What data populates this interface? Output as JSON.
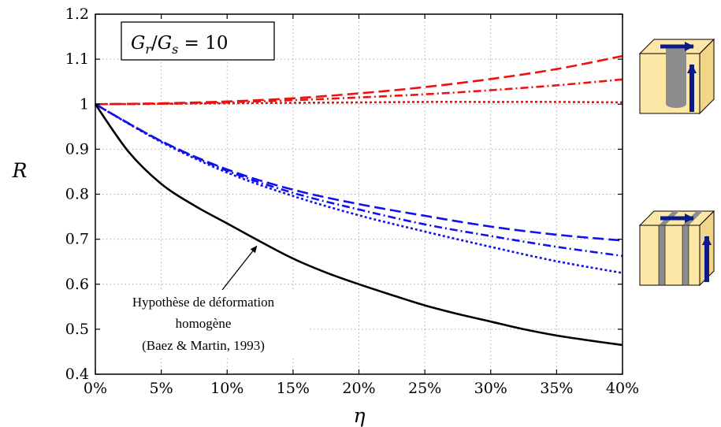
{
  "chart_data": {
    "type": "line",
    "xlabel": "η",
    "ylabel": "R",
    "xlim": [
      0,
      40
    ],
    "ylim": [
      0.4,
      1.2
    ],
    "grid": true,
    "x_tick_labels": [
      "0%",
      "5%",
      "10%",
      "15%",
      "20%",
      "25%",
      "30%",
      "35%",
      "40%"
    ],
    "y_tick_labels": [
      "0.4",
      "0.5",
      "0.6",
      "0.7",
      "0.8",
      "0.9",
      "1",
      "1.1",
      "1.2"
    ],
    "x_ticks": [
      0,
      5,
      10,
      15,
      20,
      25,
      30,
      35,
      40
    ],
    "y_ticks": [
      0.4,
      0.5,
      0.6,
      0.7,
      0.8,
      0.9,
      1.0,
      1.1,
      1.2
    ],
    "equation_box": {
      "parts": [
        {
          "text": "G",
          "italic": true
        },
        {
          "text": "r",
          "italic": true,
          "sub": true
        },
        {
          "text": "/",
          "italic": false
        },
        {
          "text": "G",
          "italic": true
        },
        {
          "text": "s",
          "italic": true,
          "sub": true
        },
        {
          "text": " = 10",
          "italic": false
        }
      ]
    },
    "annotation": {
      "lines": [
        "Hypothèse de déformation",
        "homogène",
        "(Baez & Martin, 1993)"
      ],
      "points_to": [
        12.0,
        0.695
      ]
    },
    "series": [
      {
        "color": "#ee1111",
        "dash": "long-dash",
        "x": [
          0,
          5,
          10,
          15,
          20,
          25,
          30,
          35,
          40
        ],
        "y": [
          1.0,
          1.002,
          1.006,
          1.013,
          1.024,
          1.038,
          1.056,
          1.078,
          1.107
        ]
      },
      {
        "color": "#ee1111",
        "dash": "dash-dot",
        "x": [
          0,
          5,
          10,
          15,
          20,
          25,
          30,
          35,
          40
        ],
        "y": [
          1.0,
          1.001,
          1.004,
          1.009,
          1.015,
          1.022,
          1.031,
          1.042,
          1.055
        ]
      },
      {
        "color": "#ee1111",
        "dash": "dotted",
        "x": [
          0,
          5,
          10,
          15,
          20,
          25,
          30,
          35,
          40
        ],
        "y": [
          1.0,
          1.001,
          1.002,
          1.003,
          1.004,
          1.005,
          1.005,
          1.005,
          1.004
        ]
      },
      {
        "color": "#1111ee",
        "dash": "long-dash",
        "x": [
          0,
          5,
          10,
          15,
          20,
          25,
          30,
          35,
          40
        ],
        "y": [
          1.0,
          0.918,
          0.855,
          0.81,
          0.778,
          0.752,
          0.728,
          0.71,
          0.697
        ]
      },
      {
        "color": "#1111ee",
        "dash": "dash-dot",
        "x": [
          0,
          5,
          10,
          15,
          20,
          25,
          30,
          35,
          40
        ],
        "y": [
          1.0,
          0.918,
          0.852,
          0.803,
          0.766,
          0.733,
          0.707,
          0.683,
          0.663
        ]
      },
      {
        "color": "#1111ee",
        "dash": "dotted",
        "x": [
          0,
          5,
          10,
          15,
          20,
          25,
          30,
          35,
          40
        ],
        "y": [
          1.0,
          0.916,
          0.848,
          0.796,
          0.753,
          0.717,
          0.683,
          0.651,
          0.625
        ]
      },
      {
        "color": "#000000",
        "dash": "solid",
        "x": [
          0,
          2.5,
          5,
          7.5,
          10,
          12.5,
          15,
          17.5,
          20,
          22.5,
          25,
          27.5,
          30,
          32.5,
          35,
          37.5,
          40
        ],
        "y": [
          1.0,
          0.895,
          0.823,
          0.775,
          0.735,
          0.695,
          0.657,
          0.626,
          0.6,
          0.576,
          0.553,
          0.534,
          0.517,
          0.5,
          0.486,
          0.475,
          0.465
        ]
      }
    ]
  },
  "side_icons": [
    {
      "name": "cylinder-column-cube-icon"
    },
    {
      "name": "wall-column-cube-icon"
    }
  ]
}
